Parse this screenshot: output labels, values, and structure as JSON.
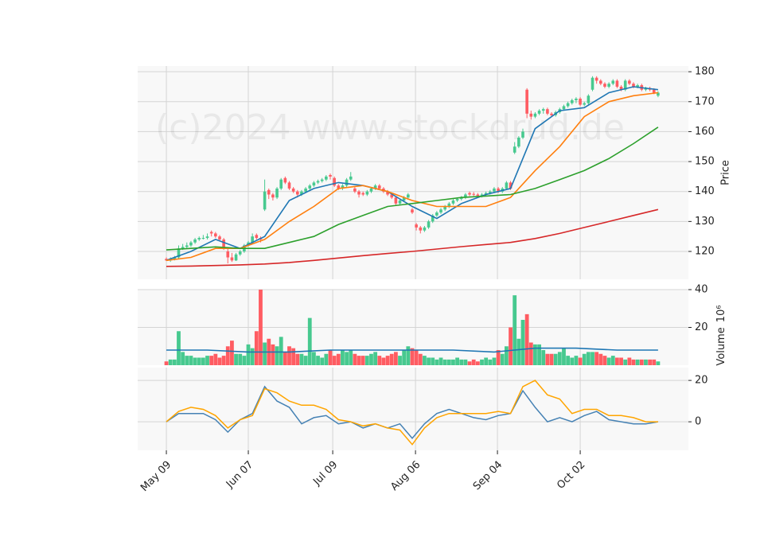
{
  "chart_data": {
    "type": "candlestick",
    "watermark": "(c)2024 www.stockdrud.de",
    "up_color": "#47c98f",
    "down_color": "#ff5c62",
    "grid": true,
    "xlim": [
      -7,
      127.4
    ],
    "xticks": [
      {
        "value": 0,
        "label": "May 09"
      },
      {
        "value": 20,
        "label": "Jun 07"
      },
      {
        "value": 40.6,
        "label": "Jul 09"
      },
      {
        "value": 60.8,
        "label": "Aug 06"
      },
      {
        "value": 80.8,
        "label": "Sep 04"
      },
      {
        "value": 101,
        "label": "Oct 02"
      }
    ],
    "ohlc": [
      [
        117.5,
        118,
        116.8,
        117
      ],
      [
        117,
        118,
        116.5,
        117.5
      ],
      [
        117.5,
        118.5,
        117,
        118
      ],
      [
        118,
        122,
        117.5,
        121
      ],
      [
        121,
        122.5,
        120.5,
        121.5
      ],
      [
        121.5,
        123,
        121,
        122
      ],
      [
        122,
        123.5,
        121.5,
        123
      ],
      [
        123,
        124.5,
        122.5,
        124
      ],
      [
        124,
        125,
        123.5,
        124.5
      ],
      [
        124.5,
        125.5,
        124,
        124.5
      ],
      [
        124.5,
        126,
        124,
        125
      ],
      [
        126.5,
        127,
        125,
        126
      ],
      [
        126,
        126.5,
        124.5,
        125
      ],
      [
        125,
        125.5,
        123.5,
        124
      ],
      [
        124,
        124.5,
        120.5,
        121
      ],
      [
        120,
        121,
        116,
        118
      ],
      [
        118,
        119.5,
        116.5,
        117
      ],
      [
        117,
        119.5,
        116.8,
        119
      ],
      [
        119,
        120.5,
        118.5,
        120
      ],
      [
        120,
        122.5,
        119.5,
        122
      ],
      [
        122,
        123.5,
        121.5,
        123
      ],
      [
        123,
        126,
        122.5,
        125
      ],
      [
        125.5,
        126,
        124,
        124.5
      ],
      [
        124.5,
        125,
        123,
        124
      ],
      [
        134,
        144,
        133.5,
        140
      ],
      [
        140.5,
        141,
        137.5,
        139
      ],
      [
        139,
        139.5,
        137,
        138
      ],
      [
        138,
        141.5,
        137.5,
        141
      ],
      [
        141,
        144.5,
        140.5,
        144
      ],
      [
        144.5,
        145,
        142.5,
        143
      ],
      [
        143,
        143.5,
        140.5,
        141
      ],
      [
        141,
        141.5,
        139.5,
        140
      ],
      [
        140,
        140.5,
        138,
        139
      ],
      [
        139,
        140.5,
        138.5,
        140
      ],
      [
        140,
        141.5,
        139.5,
        141
      ],
      [
        141,
        142.5,
        140.5,
        142
      ],
      [
        142,
        143.5,
        141.5,
        143
      ],
      [
        143,
        144,
        142.5,
        143.5
      ],
      [
        143.5,
        144.5,
        143,
        144
      ],
      [
        144,
        145.5,
        143.5,
        145
      ],
      [
        145.5,
        146,
        144,
        145
      ],
      [
        144.5,
        145,
        141.5,
        142
      ],
      [
        142,
        142.5,
        140.5,
        141
      ],
      [
        141,
        142.5,
        140.5,
        142
      ],
      [
        142,
        144.5,
        141.5,
        144
      ],
      [
        144,
        146.5,
        143.5,
        145
      ],
      [
        141,
        141.5,
        139.5,
        140
      ],
      [
        140,
        140.5,
        138,
        139
      ],
      [
        139.5,
        140,
        138.5,
        139
      ],
      [
        139,
        140.5,
        138.5,
        140
      ],
      [
        140,
        141.5,
        139.5,
        141
      ],
      [
        141,
        142.5,
        140.5,
        142
      ],
      [
        142,
        142.5,
        140.5,
        141
      ],
      [
        141,
        141.5,
        139.5,
        140
      ],
      [
        140,
        140.5,
        138.5,
        139
      ],
      [
        139,
        139.5,
        137.5,
        138
      ],
      [
        138,
        138.5,
        135.5,
        136
      ],
      [
        136,
        137.5,
        135.5,
        137
      ],
      [
        137,
        138.5,
        136.5,
        138
      ],
      [
        138,
        139.5,
        137.5,
        139
      ],
      [
        134,
        134.5,
        132.5,
        133
      ],
      [
        129,
        129.5,
        127,
        128
      ],
      [
        128,
        128.5,
        126,
        127
      ],
      [
        127,
        128.5,
        126.5,
        128
      ],
      [
        128,
        130.5,
        127.5,
        130
      ],
      [
        130,
        132.5,
        129.5,
        132
      ],
      [
        132,
        133.5,
        131.5,
        133
      ],
      [
        133,
        134.5,
        132.5,
        134
      ],
      [
        134,
        135.5,
        133.5,
        135
      ],
      [
        135,
        136.5,
        134.5,
        136
      ],
      [
        136,
        137.5,
        135.5,
        137
      ],
      [
        137,
        138,
        136.5,
        137.5
      ],
      [
        137.5,
        138.5,
        137,
        138
      ],
      [
        138,
        139.5,
        137.5,
        139
      ],
      [
        139.5,
        140,
        138.5,
        139
      ],
      [
        139.2,
        139.8,
        138.5,
        139
      ],
      [
        139,
        139.5,
        138,
        138.5
      ],
      [
        138.5,
        139.5,
        138,
        139
      ],
      [
        139,
        140,
        138.5,
        139.5
      ],
      [
        139.5,
        140.5,
        139,
        140
      ],
      [
        140,
        141.5,
        139.5,
        141
      ],
      [
        141,
        141.5,
        139.5,
        140
      ],
      [
        140,
        141.5,
        139.5,
        141
      ],
      [
        141,
        143.5,
        140.5,
        143
      ],
      [
        143,
        143.5,
        140.5,
        141
      ],
      [
        153,
        156.5,
        152.5,
        155
      ],
      [
        155,
        158.5,
        154.5,
        158
      ],
      [
        158,
        161,
        157.5,
        160
      ],
      [
        174,
        174.5,
        164.5,
        166
      ],
      [
        166,
        167,
        164,
        165
      ],
      [
        165,
        166.5,
        164.5,
        166
      ],
      [
        166,
        167.5,
        165.5,
        167
      ],
      [
        167,
        168,
        166,
        167.5
      ],
      [
        167.5,
        168,
        165.5,
        166
      ],
      [
        166,
        166.5,
        165,
        165.5
      ],
      [
        165.5,
        167,
        165,
        166.5
      ],
      [
        166.5,
        168,
        166,
        167.5
      ],
      [
        167.5,
        169,
        167,
        168.5
      ],
      [
        168.5,
        170,
        168,
        169.5
      ],
      [
        169.5,
        171,
        169,
        170.5
      ],
      [
        170.5,
        171.5,
        169.5,
        171
      ],
      [
        171,
        171.5,
        168.5,
        169
      ],
      [
        169,
        170,
        168.5,
        169.5
      ],
      [
        169.5,
        172.5,
        169,
        172
      ],
      [
        174,
        178.5,
        173.5,
        178
      ],
      [
        178,
        178.5,
        176,
        177
      ],
      [
        177,
        177.5,
        175.5,
        176
      ],
      [
        176,
        176.5,
        174.5,
        175
      ],
      [
        175,
        176.5,
        174.5,
        176
      ],
      [
        176,
        177.5,
        175.5,
        177
      ],
      [
        177,
        177.5,
        174.5,
        175
      ],
      [
        175,
        175.5,
        173.5,
        174
      ],
      [
        174,
        177.5,
        173.5,
        177
      ],
      [
        177,
        177.5,
        175.5,
        176
      ],
      [
        176,
        176.5,
        174.5,
        175
      ],
      [
        175,
        176,
        174.5,
        175.5
      ],
      [
        175.5,
        176,
        173.5,
        174
      ],
      [
        174,
        175,
        173.5,
        174.5
      ],
      [
        174.5,
        175,
        173.5,
        174
      ],
      [
        174,
        174.5,
        172.5,
        173
      ],
      [
        172,
        173.5,
        171.5,
        173
      ]
    ],
    "price": {
      "ylabel": "Price",
      "ylim": [
        110.7,
        181.9
      ],
      "yticks": [
        120,
        130,
        140,
        150,
        160,
        170,
        180
      ],
      "line_x": [
        0,
        6,
        12,
        18,
        24,
        30,
        36,
        42,
        48,
        54,
        60,
        66,
        72,
        78,
        84,
        90,
        96,
        102,
        108,
        114,
        120
      ],
      "lines": [
        {
          "color": "#1f77b4",
          "values": [
            117,
            120,
            124,
            121,
            125,
            137,
            141,
            143,
            142,
            140,
            135,
            131,
            136,
            139,
            141,
            161,
            167,
            168,
            173,
            175,
            174
          ]
        },
        {
          "color": "#ff7f0e",
          "values": [
            117,
            118,
            121,
            121,
            124,
            130,
            135,
            141,
            142,
            140,
            137,
            135,
            135,
            135,
            138,
            147,
            155,
            165,
            170,
            172,
            173
          ]
        },
        {
          "color": "#2ca02c",
          "values": [
            120.5,
            121,
            121.5,
            121,
            121,
            123,
            125,
            129,
            132,
            135,
            136,
            137,
            138,
            138.5,
            139,
            141,
            144,
            147,
            151,
            156,
            161.5
          ]
        },
        {
          "color": "#d62728",
          "values": [
            115,
            115.1,
            115.3,
            115.5,
            115.8,
            116.3,
            117,
            117.8,
            118.6,
            119.3,
            120,
            120.8,
            121.6,
            122.3,
            123,
            124.3,
            126,
            128,
            130,
            132,
            134
          ]
        }
      ]
    },
    "volume": {
      "ylabel": "Volume",
      "scale": "10⁶",
      "ylim": [
        0,
        40
      ],
      "yticks": [
        20,
        40
      ],
      "values": [
        2,
        3,
        3,
        18,
        7,
        5,
        5,
        4,
        4,
        4,
        5,
        5,
        6,
        4,
        5,
        10,
        13,
        6,
        6,
        5,
        11,
        9,
        18,
        40,
        12,
        14,
        11,
        10,
        15,
        7,
        10,
        9,
        6,
        6,
        5,
        25,
        7,
        5,
        4,
        6,
        8,
        5,
        6,
        8,
        7,
        8,
        6,
        5,
        5,
        5,
        6,
        7,
        5,
        4,
        5,
        6,
        7,
        5,
        8,
        10,
        9,
        8,
        6,
        5,
        4,
        4,
        3,
        4,
        3,
        3,
        3,
        4,
        3,
        3,
        2,
        3,
        2,
        3,
        4,
        3,
        4,
        8,
        6,
        10,
        20,
        37,
        14,
        24,
        27,
        12,
        11,
        11,
        8,
        6,
        6,
        6,
        7,
        9,
        5,
        4,
        5,
        4,
        6,
        7,
        7,
        7,
        6,
        5,
        4,
        5,
        4,
        4,
        3,
        4,
        3,
        3,
        3,
        3,
        3,
        3,
        2
      ],
      "ma": {
        "color": "#1f77b4",
        "x": [
          0,
          10,
          20,
          30,
          40,
          50,
          60,
          70,
          80,
          90,
          100,
          110,
          120
        ],
        "values": [
          8,
          8,
          7,
          7,
          8,
          8,
          8,
          8,
          7,
          9,
          9,
          8,
          8
        ]
      }
    },
    "oscillator": {
      "ylim": [
        -13.8,
        26.2
      ],
      "yticks": [
        0,
        20
      ],
      "line_x": [
        0,
        3,
        6,
        9,
        12,
        15,
        18,
        21,
        24,
        27,
        30,
        33,
        36,
        39,
        42,
        45,
        48,
        51,
        54,
        57,
        60,
        63,
        66,
        69,
        72,
        75,
        78,
        81,
        84,
        87,
        90,
        93,
        96,
        99,
        102,
        105,
        108,
        111,
        114,
        117,
        120
      ],
      "lines": [
        {
          "color": "#4682b4",
          "values": [
            0,
            4,
            4,
            4,
            1,
            -5,
            1,
            4,
            17,
            10,
            7,
            -1,
            2,
            3,
            -1,
            0,
            -3,
            -1,
            -3,
            -1,
            -8,
            -1,
            4,
            6,
            4,
            2,
            1,
            3,
            4,
            15,
            7,
            0,
            2,
            0,
            3,
            5,
            1,
            0,
            -1,
            -1,
            0
          ]
        },
        {
          "color": "#ffa500",
          "values": [
            0,
            5,
            7,
            6,
            3,
            -3,
            1,
            3,
            16,
            14,
            10,
            8,
            8,
            6,
            1,
            0,
            -2,
            -1,
            -3,
            -4,
            -11,
            -3,
            2,
            4,
            4,
            4,
            4,
            5,
            4,
            17,
            20,
            13,
            11,
            4,
            6,
            6,
            3,
            3,
            2,
            0,
            0
          ]
        }
      ]
    }
  }
}
